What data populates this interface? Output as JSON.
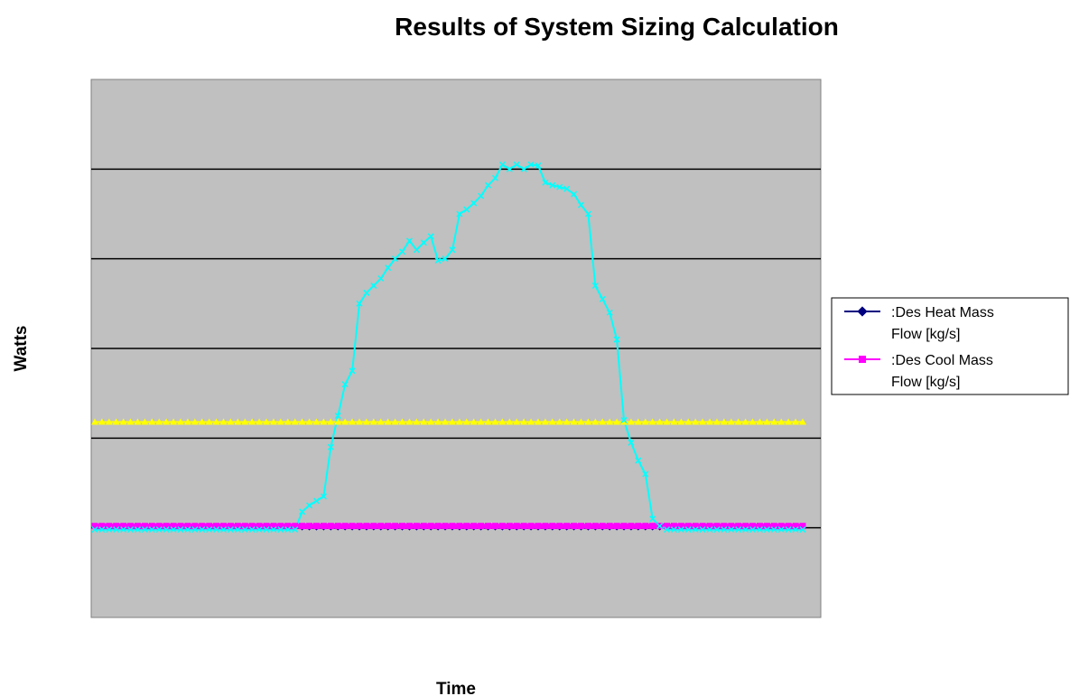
{
  "chart_data": {
    "type": "line",
    "title": "Results of System Sizing Calculation",
    "xlabel": "Time",
    "ylabel": "Watts",
    "grid": "horizontal",
    "legend_position": "right",
    "plot_background": "#c0c0c0",
    "ylim": [
      -1,
      5
    ],
    "gridlines": [
      0,
      1,
      2,
      3,
      4
    ],
    "x": [
      1,
      2,
      3,
      4,
      5,
      6,
      7,
      8,
      9,
      10,
      11,
      12,
      13,
      14,
      15,
      16,
      17,
      18,
      19,
      20,
      21,
      22,
      23,
      24,
      25,
      26,
      27,
      28,
      29,
      30,
      31,
      32,
      33,
      34,
      35,
      36,
      37,
      38,
      39,
      40,
      41,
      42,
      43,
      44,
      45,
      46,
      47,
      48,
      49,
      50,
      51,
      52,
      53,
      54,
      55,
      56,
      57,
      58,
      59,
      60,
      61,
      62,
      63,
      64,
      65,
      66,
      67,
      68,
      69,
      70,
      71,
      72,
      73,
      74,
      75,
      76,
      77,
      78,
      79,
      80,
      81,
      82,
      83,
      84,
      85,
      86,
      87,
      88,
      89,
      90,
      91,
      92,
      93,
      94,
      95,
      96,
      97,
      98,
      99,
      100
    ],
    "series": [
      {
        "name": ":Des Heat Mass Flow [kg/s]",
        "color": "#000080",
        "marker": "diamond",
        "in_legend": true,
        "values": [
          0,
          0,
          0,
          0,
          0,
          0,
          0,
          0,
          0,
          0,
          0,
          0,
          0,
          0,
          0,
          0,
          0,
          0,
          0,
          0,
          0,
          0,
          0,
          0,
          0,
          0,
          0,
          0,
          0,
          0,
          0,
          0,
          0,
          0,
          0,
          0,
          0,
          0,
          0,
          0,
          0,
          0,
          0,
          0,
          0,
          0,
          0,
          0,
          0,
          0,
          0,
          0,
          0,
          0,
          0,
          0,
          0,
          0,
          0,
          0,
          0,
          0,
          0,
          0,
          0,
          0,
          0,
          0,
          0,
          0,
          0,
          0,
          0,
          0,
          0,
          0,
          0,
          0,
          0,
          0,
          0,
          0,
          0,
          0,
          0,
          0,
          0,
          0,
          0,
          0,
          0,
          0,
          0,
          0,
          0,
          0,
          0,
          0,
          0,
          0
        ]
      },
      {
        "name": ":Des Cool Mass Flow [kg/s]",
        "color": "#ff00ff",
        "marker": "square",
        "in_legend": true,
        "values": [
          0.02,
          0.02,
          0.02,
          0.02,
          0.02,
          0.02,
          0.02,
          0.02,
          0.02,
          0.02,
          0.02,
          0.02,
          0.02,
          0.02,
          0.02,
          0.02,
          0.02,
          0.02,
          0.02,
          0.02,
          0.02,
          0.02,
          0.02,
          0.02,
          0.02,
          0.02,
          0.02,
          0.02,
          0.02,
          0.02,
          0.02,
          0.02,
          0.02,
          0.02,
          0.02,
          0.02,
          0.02,
          0.02,
          0.02,
          0.02,
          0.02,
          0.02,
          0.02,
          0.02,
          0.02,
          0.02,
          0.02,
          0.02,
          0.02,
          0.02,
          0.02,
          0.02,
          0.02,
          0.02,
          0.02,
          0.02,
          0.02,
          0.02,
          0.02,
          0.02,
          0.02,
          0.02,
          0.02,
          0.02,
          0.02,
          0.02,
          0.02,
          0.02,
          0.02,
          0.02,
          0.02,
          0.02,
          0.02,
          0.02,
          0.02,
          0.02,
          0.02,
          0.02,
          0.02,
          0.02,
          0.02,
          0.02,
          0.02,
          0.02,
          0.02,
          0.02,
          0.02,
          0.02,
          0.02,
          0.02,
          0.02,
          0.02,
          0.02,
          0.02,
          0.02,
          0.02,
          0.02,
          0.02,
          0.02,
          0.02
        ]
      },
      {
        "color": "#ffff00",
        "marker": "triangle",
        "in_legend": false,
        "values": [
          1.18,
          1.18,
          1.18,
          1.18,
          1.18,
          1.18,
          1.18,
          1.18,
          1.18,
          1.18,
          1.18,
          1.18,
          1.18,
          1.18,
          1.18,
          1.18,
          1.18,
          1.18,
          1.18,
          1.18,
          1.18,
          1.18,
          1.18,
          1.18,
          1.18,
          1.18,
          1.18,
          1.18,
          1.18,
          1.18,
          1.18,
          1.18,
          1.18,
          1.18,
          1.18,
          1.18,
          1.18,
          1.18,
          1.18,
          1.18,
          1.18,
          1.18,
          1.18,
          1.18,
          1.18,
          1.18,
          1.18,
          1.18,
          1.18,
          1.18,
          1.18,
          1.18,
          1.18,
          1.18,
          1.18,
          1.18,
          1.18,
          1.18,
          1.18,
          1.18,
          1.18,
          1.18,
          1.18,
          1.18,
          1.18,
          1.18,
          1.18,
          1.18,
          1.18,
          1.18,
          1.18,
          1.18,
          1.18,
          1.18,
          1.18,
          1.18,
          1.18,
          1.18,
          1.18,
          1.18,
          1.18,
          1.18,
          1.18,
          1.18,
          1.18,
          1.18,
          1.18,
          1.18,
          1.18,
          1.18,
          1.18,
          1.18,
          1.18,
          1.18,
          1.18,
          1.18,
          1.18,
          1.18,
          1.18,
          1.18
        ]
      },
      {
        "color": "#00ffff",
        "marker": "x",
        "in_legend": false,
        "values": [
          -0.02,
          -0.02,
          -0.02,
          -0.02,
          -0.02,
          -0.02,
          -0.02,
          -0.02,
          -0.02,
          -0.02,
          -0.02,
          -0.02,
          -0.02,
          -0.02,
          -0.02,
          -0.02,
          -0.02,
          -0.02,
          -0.02,
          -0.02,
          -0.02,
          -0.02,
          -0.02,
          -0.02,
          -0.02,
          -0.02,
          -0.02,
          -0.02,
          -0.02,
          0.18,
          0.25,
          0.3,
          0.35,
          0.9,
          1.25,
          1.6,
          1.75,
          2.5,
          2.62,
          2.7,
          2.78,
          2.9,
          3.0,
          3.08,
          3.2,
          3.1,
          3.18,
          3.25,
          2.98,
          3.0,
          3.1,
          3.5,
          3.55,
          3.62,
          3.7,
          3.82,
          3.9,
          4.05,
          4.0,
          4.05,
          4.0,
          4.05,
          4.04,
          3.85,
          3.82,
          3.8,
          3.78,
          3.72,
          3.6,
          3.5,
          2.7,
          2.55,
          2.4,
          2.1,
          1.2,
          0.95,
          0.75,
          0.6,
          0.1,
          0.02,
          -0.02,
          -0.02,
          -0.02,
          -0.02,
          -0.02,
          -0.02,
          -0.02,
          -0.02,
          -0.02,
          -0.02,
          -0.02,
          -0.02,
          -0.02,
          -0.02,
          -0.02,
          -0.02,
          -0.02,
          -0.02,
          -0.02,
          -0.02
        ]
      }
    ]
  }
}
